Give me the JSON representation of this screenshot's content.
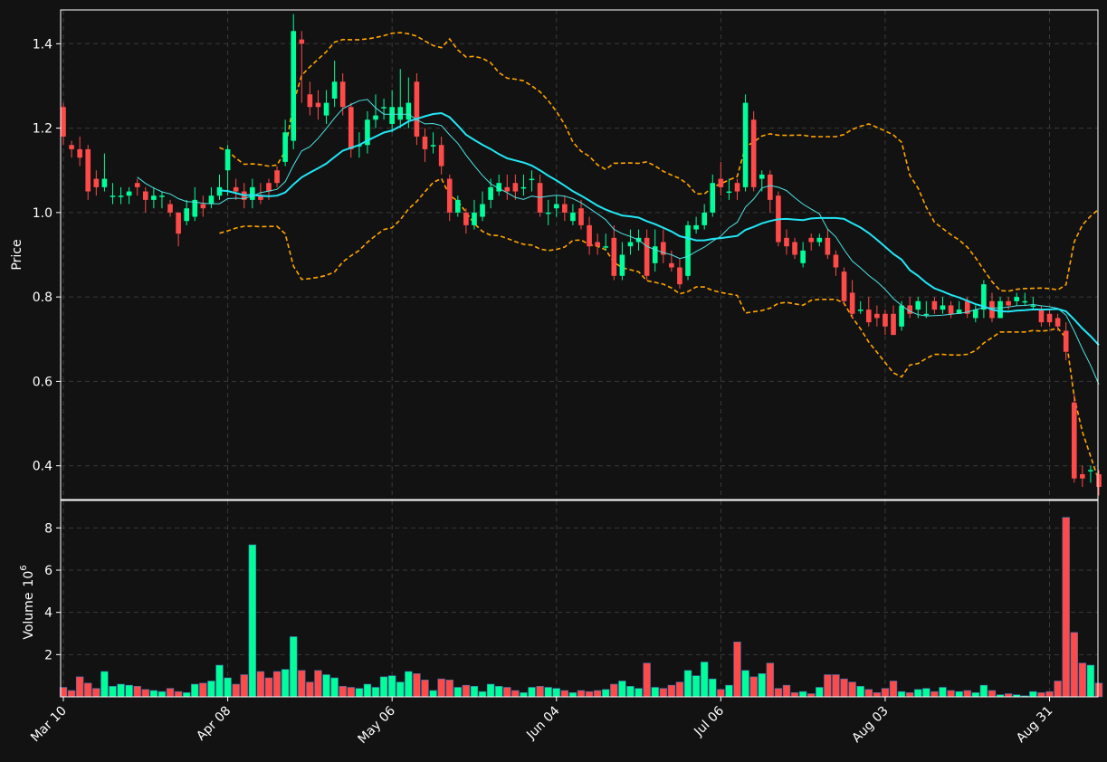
{
  "chart_data": {
    "type": "candlestick",
    "panels": [
      "price",
      "volume"
    ],
    "colors": {
      "background": "#121212",
      "up": "#00ff9a",
      "down": "#ff4a4a",
      "ma_fast": "#4fe3e3",
      "ma_slow": "#22e6f5",
      "bands": "#ffa500",
      "grid": "#3a3a3a",
      "axis": "#ffffff"
    },
    "price_panel": {
      "ylabel": "Price",
      "ylim": [
        0.32,
        1.48
      ],
      "yticks": [
        0.4,
        0.6,
        0.8,
        1.0,
        1.2,
        1.4
      ],
      "ytick_labels": [
        "0.4",
        "0.6",
        "0.8",
        "1.0",
        "1.2",
        "1.4"
      ],
      "grid": true
    },
    "volume_panel": {
      "ylabel": "Volume",
      "yexponent": "6",
      "ylim": [
        0,
        9.3
      ],
      "yticks": [
        2,
        4,
        6,
        8
      ],
      "ytick_labels": [
        "2",
        "4",
        "6",
        "8"
      ],
      "grid": true
    },
    "x_axis": {
      "tick_indices": [
        0,
        20,
        40,
        60,
        80,
        100,
        120
      ],
      "tick_labels": [
        "Mar 10",
        "Apr 08",
        "May 06",
        "Jun 04",
        "Jul 06",
        "Aug 03",
        "Aug 31"
      ],
      "count": 127
    },
    "close": [
      1.18,
      1.15,
      1.13,
      1.05,
      1.06,
      1.08,
      1.04,
      1.04,
      1.05,
      1.06,
      1.03,
      1.04,
      1.04,
      1.0,
      0.95,
      1.01,
      1.03,
      1.01,
      1.04,
      1.06,
      1.15,
      1.05,
      1.03,
      1.06,
      1.03,
      1.05,
      1.07,
      1.19,
      1.43,
      1.4,
      1.25,
      1.25,
      1.26,
      1.31,
      1.25,
      1.15,
      1.16,
      1.22,
      1.23,
      1.25,
      1.25,
      1.25,
      1.26,
      1.18,
      1.15,
      1.16,
      1.11,
      1.0,
      1.03,
      0.97,
      1.0,
      1.02,
      1.06,
      1.07,
      1.05,
      1.05,
      1.06,
      1.08,
      1.0,
      1.0,
      1.02,
      1.0,
      1.0,
      0.97,
      0.92,
      0.92,
      0.92,
      0.85,
      0.9,
      0.93,
      0.94,
      0.85,
      0.92,
      0.9,
      0.87,
      0.83,
      0.97,
      0.97,
      1.0,
      1.07,
      1.06,
      1.05,
      1.05,
      1.26,
      1.06,
      1.09,
      1.03,
      0.93,
      0.92,
      0.9,
      0.91,
      0.93,
      0.94,
      0.9,
      0.87,
      0.79,
      0.76,
      0.77,
      0.74,
      0.75,
      0.73,
      0.71,
      0.78,
      0.76,
      0.79,
      0.76,
      0.77,
      0.78,
      0.76,
      0.77,
      0.76,
      0.77,
      0.83,
      0.75,
      0.79,
      0.78,
      0.8,
      0.79,
      0.78,
      0.74,
      0.74,
      0.73,
      0.67,
      0.37,
      0.37,
      0.39,
      0.35
    ],
    "open": [
      1.25,
      1.16,
      1.15,
      1.15,
      1.08,
      1.06,
      1.04,
      1.04,
      1.04,
      1.07,
      1.05,
      1.03,
      1.04,
      1.02,
      1.0,
      0.98,
      0.99,
      1.02,
      1.02,
      1.04,
      1.1,
      1.06,
      1.05,
      1.03,
      1.04,
      1.07,
      1.1,
      1.12,
      1.17,
      1.41,
      1.28,
      1.26,
      1.23,
      1.27,
      1.31,
      1.25,
      1.16,
      1.16,
      1.22,
      1.25,
      1.21,
      1.22,
      1.22,
      1.31,
      1.18,
      1.16,
      1.16,
      1.08,
      1.0,
      1.0,
      0.97,
      0.99,
      1.03,
      1.05,
      1.06,
      1.07,
      1.06,
      1.08,
      1.07,
      1.0,
      1.01,
      1.02,
      0.98,
      1.01,
      0.97,
      0.93,
      0.92,
      0.94,
      0.85,
      0.92,
      0.93,
      0.94,
      0.88,
      0.93,
      0.88,
      0.87,
      0.85,
      0.96,
      0.97,
      1.0,
      1.08,
      1.05,
      1.07,
      1.06,
      1.22,
      1.08,
      1.09,
      1.04,
      0.94,
      0.93,
      0.88,
      0.94,
      0.93,
      0.94,
      0.9,
      0.86,
      0.81,
      0.77,
      0.77,
      0.76,
      0.76,
      0.76,
      0.73,
      0.78,
      0.77,
      0.76,
      0.79,
      0.77,
      0.78,
      0.76,
      0.79,
      0.75,
      0.77,
      0.79,
      0.75,
      0.79,
      0.79,
      0.79,
      0.78,
      0.77,
      0.76,
      0.75,
      0.72,
      0.55,
      0.38,
      0.39,
      0.38
    ],
    "high": [
      1.26,
      1.17,
      1.18,
      1.16,
      1.1,
      1.14,
      1.07,
      1.06,
      1.06,
      1.08,
      1.06,
      1.06,
      1.05,
      1.03,
      1.0,
      1.03,
      1.06,
      1.04,
      1.06,
      1.09,
      1.16,
      1.08,
      1.07,
      1.08,
      1.07,
      1.08,
      1.11,
      1.22,
      1.47,
      1.43,
      1.31,
      1.29,
      1.29,
      1.36,
      1.33,
      1.26,
      1.19,
      1.24,
      1.28,
      1.27,
      1.29,
      1.34,
      1.32,
      1.33,
      1.2,
      1.19,
      1.18,
      1.09,
      1.04,
      1.01,
      1.03,
      1.05,
      1.08,
      1.09,
      1.09,
      1.09,
      1.09,
      1.1,
      1.09,
      1.03,
      1.04,
      1.04,
      1.02,
      1.03,
      0.99,
      0.95,
      0.95,
      0.97,
      0.93,
      0.96,
      0.96,
      0.96,
      0.96,
      0.96,
      0.91,
      0.89,
      0.98,
      0.99,
      1.02,
      1.09,
      1.12,
      1.08,
      1.08,
      1.28,
      1.24,
      1.1,
      1.1,
      1.05,
      0.96,
      0.94,
      0.93,
      0.95,
      0.95,
      0.96,
      0.91,
      0.87,
      0.84,
      0.79,
      0.8,
      0.78,
      0.77,
      0.78,
      0.79,
      0.8,
      0.8,
      0.79,
      0.8,
      0.8,
      0.79,
      0.79,
      0.8,
      0.78,
      0.84,
      0.81,
      0.8,
      0.8,
      0.81,
      0.81,
      0.8,
      0.78,
      0.77,
      0.76,
      0.74,
      0.57,
      0.4,
      0.4,
      0.39
    ],
    "low": [
      1.16,
      1.13,
      1.11,
      1.03,
      1.04,
      1.05,
      1.02,
      1.02,
      1.02,
      1.04,
      1.0,
      1.01,
      1.01,
      0.99,
      0.92,
      0.97,
      0.98,
      0.99,
      1.01,
      1.03,
      1.04,
      1.03,
      1.01,
      1.01,
      1.02,
      1.03,
      1.06,
      1.11,
      1.15,
      1.26,
      1.23,
      1.22,
      1.21,
      1.25,
      1.23,
      1.13,
      1.13,
      1.14,
      1.2,
      1.22,
      1.19,
      1.2,
      1.2,
      1.16,
      1.12,
      1.14,
      1.09,
      0.98,
      0.99,
      0.95,
      0.96,
      0.98,
      1.01,
      1.04,
      1.03,
      1.03,
      1.04,
      1.05,
      0.99,
      0.97,
      0.99,
      0.98,
      0.97,
      0.96,
      0.9,
      0.9,
      0.91,
      0.84,
      0.84,
      0.9,
      0.91,
      0.84,
      0.86,
      0.88,
      0.86,
      0.82,
      0.84,
      0.95,
      0.96,
      0.99,
      1.04,
      1.03,
      1.03,
      1.05,
      1.05,
      1.05,
      1.0,
      0.92,
      0.9,
      0.89,
      0.87,
      0.91,
      0.92,
      0.89,
      0.85,
      0.78,
      0.75,
      0.76,
      0.73,
      0.73,
      0.71,
      0.71,
      0.72,
      0.75,
      0.75,
      0.75,
      0.76,
      0.76,
      0.75,
      0.76,
      0.75,
      0.74,
      0.75,
      0.74,
      0.75,
      0.77,
      0.78,
      0.78,
      0.77,
      0.73,
      0.73,
      0.72,
      0.65,
      0.36,
      0.35,
      0.36,
      0.33
    ],
    "volume": [
      0.45,
      0.3,
      0.95,
      0.65,
      0.4,
      1.2,
      0.5,
      0.6,
      0.55,
      0.5,
      0.35,
      0.3,
      0.25,
      0.4,
      0.25,
      0.2,
      0.6,
      0.65,
      0.75,
      1.5,
      0.9,
      0.6,
      1.05,
      7.2,
      1.2,
      0.9,
      1.2,
      1.3,
      2.85,
      1.25,
      0.7,
      1.25,
      1.05,
      0.9,
      0.5,
      0.45,
      0.4,
      0.6,
      0.45,
      0.95,
      1.0,
      0.7,
      1.2,
      1.1,
      0.8,
      0.3,
      0.85,
      0.8,
      0.45,
      0.55,
      0.5,
      0.25,
      0.6,
      0.5,
      0.45,
      0.3,
      0.2,
      0.45,
      0.5,
      0.45,
      0.4,
      0.3,
      0.2,
      0.3,
      0.25,
      0.3,
      0.35,
      0.6,
      0.75,
      0.5,
      0.4,
      1.6,
      0.45,
      0.4,
      0.55,
      0.7,
      1.25,
      1.0,
      1.65,
      0.85,
      0.35,
      0.55,
      2.6,
      1.25,
      0.95,
      1.1,
      1.6,
      0.4,
      0.55,
      0.2,
      0.25,
      0.15,
      0.45,
      1.05,
      1.05,
      0.85,
      0.7,
      0.5,
      0.35,
      0.2,
      0.4,
      0.75,
      0.25,
      0.2,
      0.35,
      0.4,
      0.25,
      0.45,
      0.3,
      0.25,
      0.3,
      0.2,
      0.55,
      0.3,
      0.1,
      0.15,
      0.1,
      0.05,
      0.25,
      0.2,
      0.25,
      0.75,
      8.5,
      3.05,
      1.6,
      1.5,
      0.65
    ]
  }
}
